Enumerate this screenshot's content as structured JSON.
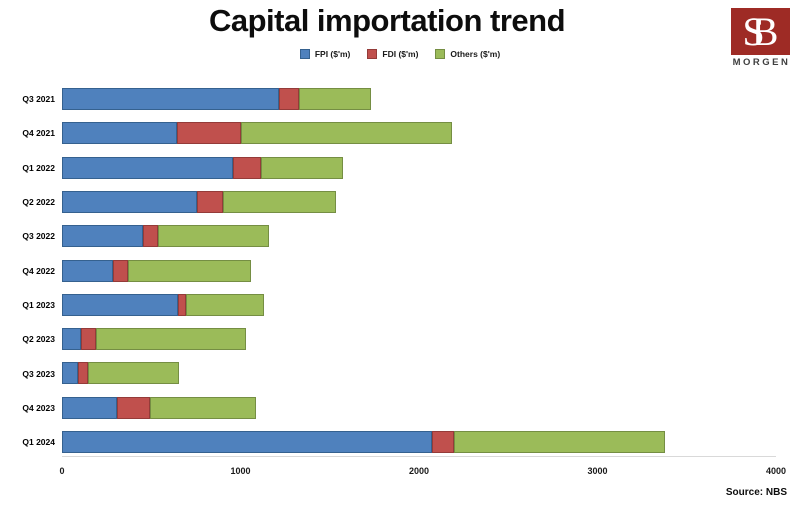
{
  "title": "Capital importation trend",
  "logo": {
    "monogram_s": "S",
    "monogram_b": "B",
    "name": "MORGEN",
    "box_color": "#9E2B25",
    "name_color": "#3F3F3F"
  },
  "source": "Source: NBS",
  "chart_data": {
    "type": "bar",
    "orientation": "horizontal",
    "stacked": true,
    "title": "Capital importation trend",
    "xlabel": "",
    "ylabel": "",
    "xlim": [
      0,
      4000
    ],
    "xticks": [
      0,
      1000,
      2000,
      3000,
      4000
    ],
    "grid": false,
    "legend_position": "top-center",
    "categories": [
      "Q3 2021",
      "Q4 2021",
      "Q1 2022",
      "Q2 2022",
      "Q3 2022",
      "Q4 2022",
      "Q1 2023",
      "Q2 2023",
      "Q3 2023",
      "Q4 2023",
      "Q1 2024"
    ],
    "series": [
      {
        "key": "fpi",
        "name": "FPI ($'m)",
        "color": "#4F81BD",
        "border_color": "#35618F",
        "values": [
          1217.2,
          642.9,
          957.6,
          757.3,
          455.6,
          286.3,
          649.3,
          106.9,
          87.1,
          309.8,
          2075.6
        ]
      },
      {
        "key": "fdi",
        "name": "FDI ($'m)",
        "color": "#C0504D",
        "border_color": "#943B39",
        "values": [
          107.8,
          358.2,
          155.0,
          147.2,
          81.7,
          84.2,
          47.6,
          86.0,
          59.8,
          184.0,
          119.2
        ]
      },
      {
        "key": "others",
        "name": "Others ($'m)",
        "color": "#9BBB59",
        "border_color": "#758E43",
        "values": [
          405.0,
          1186.5,
          460.6,
          630.9,
          622.3,
          690.2,
          435.8,
          837.3,
          507.8,
          594.8,
          1181.3
        ]
      }
    ]
  }
}
